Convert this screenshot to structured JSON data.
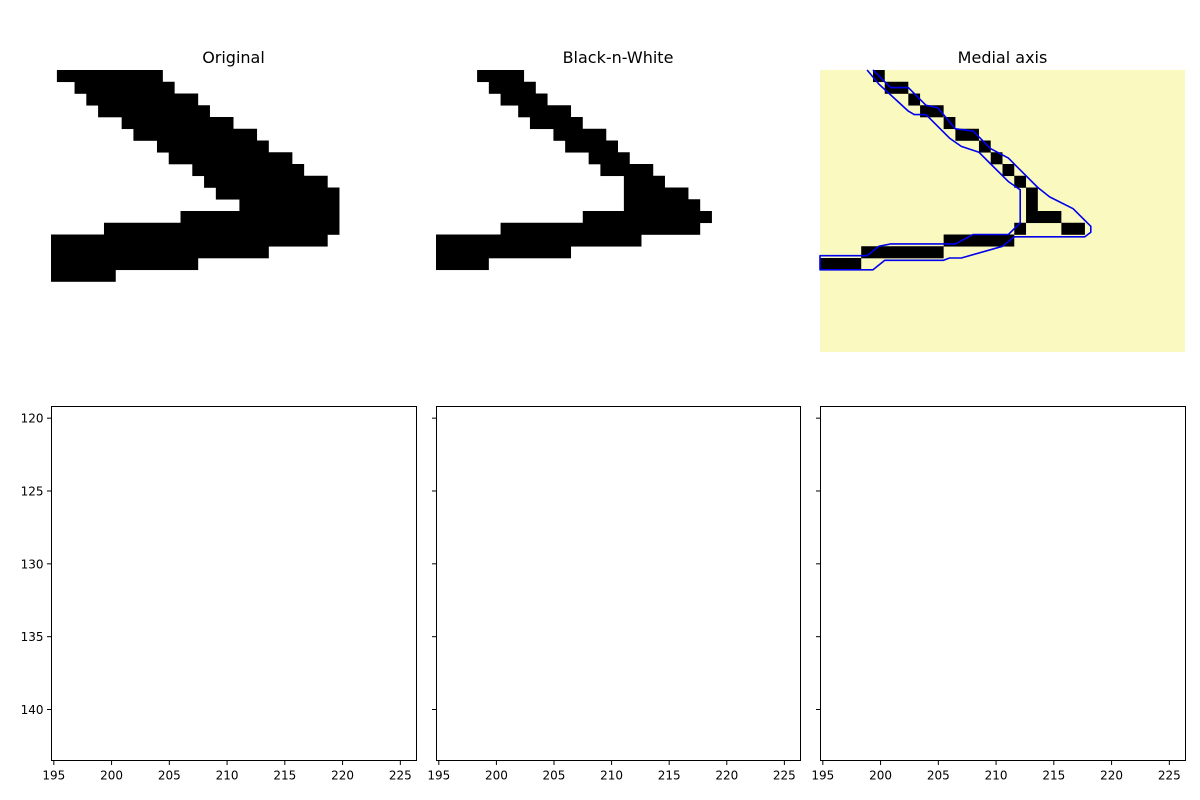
{
  "figure": {
    "width": 1200,
    "height": 800,
    "background": "#ffffff"
  },
  "colors": {
    "ink": "#000000",
    "medial_background": "#fafac0",
    "contour": "#0000ee",
    "axes_edge": "#000000"
  },
  "chart_data": [
    {
      "type": "heatmap",
      "title": "Original",
      "axes_visible": false,
      "pixel_grid": {
        "x0": 195,
        "y0": 119,
        "cols": 31,
        "rows": 24
      },
      "black_runs": [
        [
          119,
          195.5,
          204.5
        ],
        [
          120,
          197,
          205.5
        ],
        [
          121,
          198,
          207.5
        ],
        [
          122,
          199,
          208.5
        ],
        [
          123,
          201,
          210.5
        ],
        [
          124,
          202,
          212.5
        ],
        [
          125,
          204,
          213.5
        ],
        [
          126,
          205,
          215.5
        ],
        [
          127,
          207,
          216.5
        ],
        [
          128,
          208,
          218.5
        ],
        [
          129,
          209,
          219.5
        ],
        [
          130,
          211,
          219.5
        ],
        [
          131,
          206,
          219.5
        ],
        [
          132,
          199.5,
          219.5
        ],
        [
          133,
          195,
          218.5
        ],
        [
          134,
          195,
          213.5
        ],
        [
          135,
          195,
          207.5
        ],
        [
          136,
          195,
          200.5
        ]
      ]
    },
    {
      "type": "heatmap",
      "title": "Black-n-White",
      "axes_visible": false,
      "pixel_grid": {
        "x0": 195,
        "y0": 119,
        "cols": 31,
        "rows": 24
      },
      "black_runs": [
        [
          119,
          198.5,
          202.5
        ],
        [
          120,
          199.5,
          203.5
        ],
        [
          121,
          200.5,
          204.5
        ],
        [
          122,
          202,
          206.5
        ],
        [
          123,
          203,
          207.5
        ],
        [
          124,
          205,
          209.5
        ],
        [
          125,
          206,
          210.5
        ],
        [
          126,
          208,
          211.5
        ],
        [
          127,
          209,
          213.5
        ],
        [
          128,
          211,
          214.5
        ],
        [
          129,
          211,
          216.5
        ],
        [
          130,
          211,
          217.5
        ],
        [
          131,
          207.5,
          218.5
        ],
        [
          132,
          200.5,
          217.5
        ],
        [
          133,
          195,
          212.5
        ],
        [
          134,
          195,
          206.5
        ],
        [
          135,
          195,
          199.5
        ]
      ]
    },
    {
      "type": "heatmap",
      "title": "Medial axis",
      "axes_visible": false,
      "pixel_grid": {
        "x0": 195,
        "y0": 119,
        "cols": 31,
        "rows": 24
      },
      "black_runs": [
        [
          119,
          199.5,
          200.5
        ],
        [
          120,
          200.5,
          202.5
        ],
        [
          121,
          202.5,
          203.5
        ],
        [
          122,
          203.5,
          205.5
        ],
        [
          123,
          205.5,
          206.5
        ],
        [
          124,
          206.5,
          208.5
        ],
        [
          125,
          208.5,
          209.5
        ],
        [
          126,
          209.5,
          210.5
        ],
        [
          127,
          210.5,
          211.5
        ],
        [
          128,
          211.5,
          212.5
        ],
        [
          129,
          212.5,
          213.5
        ],
        [
          130,
          212.5,
          213.5
        ],
        [
          131,
          212.5,
          215.5
        ],
        [
          132,
          211.5,
          212.5
        ],
        [
          132,
          215.5,
          217.5
        ],
        [
          133,
          205.5,
          211.5
        ],
        [
          134,
          198.5,
          205.5
        ],
        [
          135,
          195,
          198.5
        ]
      ],
      "contour": [
        [
          199.5,
          119
        ],
        [
          201,
          120.5
        ],
        [
          202.5,
          120.5
        ],
        [
          204,
          122
        ],
        [
          205,
          122.2
        ],
        [
          206.5,
          124
        ],
        [
          208,
          124.2
        ],
        [
          209.5,
          125.7
        ],
        [
          211,
          126.5
        ],
        [
          212,
          127.5
        ],
        [
          213.5,
          129
        ],
        [
          214.5,
          129.8
        ],
        [
          216.5,
          130.8
        ],
        [
          218,
          132.3
        ],
        [
          218,
          132.8
        ],
        [
          217.5,
          133.2
        ],
        [
          211.5,
          133.2
        ],
        [
          210.5,
          134
        ],
        [
          207,
          135
        ],
        [
          206,
          135
        ],
        [
          205.5,
          135.2
        ],
        [
          200.5,
          135.2
        ],
        [
          199.5,
          136
        ],
        [
          197,
          136
        ],
        [
          195,
          136
        ],
        [
          195,
          134.8
        ],
        [
          197,
          134.8
        ],
        [
          199,
          134.8
        ],
        [
          200,
          134
        ],
        [
          201,
          133.8
        ],
        [
          206.5,
          133.8
        ],
        [
          208,
          133
        ],
        [
          211,
          133
        ],
        [
          212,
          132
        ],
        [
          212,
          131
        ],
        [
          212,
          129.2
        ],
        [
          211,
          128.5
        ],
        [
          209.5,
          127
        ],
        [
          208.5,
          126
        ],
        [
          207,
          125.5
        ],
        [
          206,
          124.8
        ],
        [
          204,
          122.8
        ],
        [
          203,
          122.8
        ],
        [
          202.5,
          122.5
        ],
        [
          200,
          120.2
        ],
        [
          199,
          119
        ]
      ]
    },
    {
      "type": "heatmap",
      "title": "",
      "axes_visible": true,
      "xlim": [
        194.8,
        226.4
      ],
      "ylim": [
        143.5,
        119.2
      ],
      "xticks": [
        195,
        200,
        205,
        210,
        215,
        220,
        225
      ],
      "yticks": [
        120,
        125,
        130,
        135,
        140
      ],
      "ytick_labels_visible": true,
      "black_runs": []
    },
    {
      "type": "heatmap",
      "title": "",
      "axes_visible": true,
      "xlim": [
        194.8,
        226.4
      ],
      "ylim": [
        143.5,
        119.2
      ],
      "xticks": [
        195,
        200,
        205,
        210,
        215,
        220,
        225
      ],
      "yticks": [
        120,
        125,
        130,
        135,
        140
      ],
      "ytick_labels_visible": false,
      "black_runs": []
    },
    {
      "type": "heatmap",
      "title": "",
      "axes_visible": true,
      "xlim": [
        194.8,
        226.4
      ],
      "ylim": [
        143.5,
        119.2
      ],
      "xticks": [
        195,
        200,
        205,
        210,
        215,
        220,
        225
      ],
      "yticks": [
        120,
        125,
        130,
        135,
        140
      ],
      "ytick_labels_visible": false,
      "black_runs": []
    }
  ]
}
